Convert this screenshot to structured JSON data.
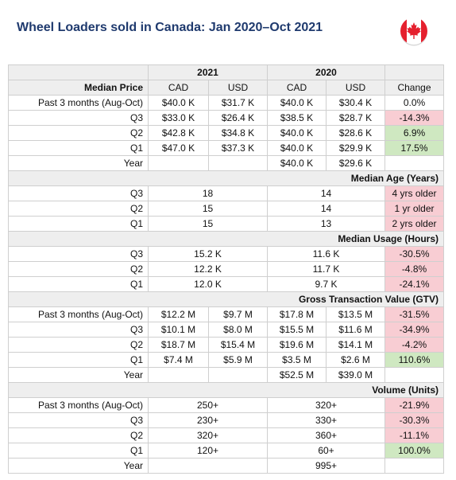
{
  "title": "Wheel Loaders sold in Canada: Jan 2020–Oct 2021",
  "colors": {
    "negative": "#f8cdd3",
    "positive": "#cfe8c1",
    "header": "#eeeeee",
    "title": "#1f3a6e"
  },
  "icon": "canada-flag-icon",
  "years": {
    "y2021": "2021",
    "y2020": "2020"
  },
  "price": {
    "section": "Median Price",
    "cad": "CAD",
    "usd": "USD",
    "change": "Change",
    "rows": [
      {
        "label": "Past 3 months (Aug-Oct)",
        "cad21": "$40.0 K",
        "usd21": "$31.7 K",
        "cad20": "$40.0 K",
        "usd20": "$30.4 K",
        "change": "0.0%"
      },
      {
        "label": "Q3",
        "cad21": "$33.0 K",
        "usd21": "$26.4 K",
        "cad20": "$38.5 K",
        "usd20": "$28.7 K",
        "change": "-14.3%"
      },
      {
        "label": "Q2",
        "cad21": "$42.8 K",
        "usd21": "$34.8 K",
        "cad20": "$40.0 K",
        "usd20": "$28.6 K",
        "change": "6.9%"
      },
      {
        "label": "Q1",
        "cad21": "$47.0 K",
        "usd21": "$37.3 K",
        "cad20": "$40.0 K",
        "usd20": "$29.9 K",
        "change": "17.5%"
      },
      {
        "label": "Year",
        "cad21": "",
        "usd21": "",
        "cad20": "$40.0 K",
        "usd20": "$29.6 K",
        "change": ""
      }
    ]
  },
  "age": {
    "section": "Median Age (Years)",
    "rows": [
      {
        "label": "Q3",
        "v21": "18",
        "v20": "14",
        "change": "4 yrs older"
      },
      {
        "label": "Q2",
        "v21": "15",
        "v20": "14",
        "change": "1 yr older"
      },
      {
        "label": "Q1",
        "v21": "15",
        "v20": "13",
        "change": "2 yrs older"
      }
    ]
  },
  "usage": {
    "section": "Median Usage (Hours)",
    "rows": [
      {
        "label": "Q3",
        "v21": "15.2 K",
        "v20": "11.6 K",
        "change": "-30.5%"
      },
      {
        "label": "Q2",
        "v21": "12.2 K",
        "v20": "11.7 K",
        "change": "-4.8%"
      },
      {
        "label": "Q1",
        "v21": "12.0 K",
        "v20": "9.7 K",
        "change": "-24.1%"
      }
    ]
  },
  "gtv": {
    "section": "Gross Transaction Value (GTV)",
    "rows": [
      {
        "label": "Past 3 months (Aug-Oct)",
        "cad21": "$12.2 M",
        "usd21": "$9.7 M",
        "cad20": "$17.8 M",
        "usd20": "$13.5 M",
        "change": "-31.5%"
      },
      {
        "label": "Q3",
        "cad21": "$10.1 M",
        "usd21": "$8.0 M",
        "cad20": "$15.5 M",
        "usd20": "$11.6 M",
        "change": "-34.9%"
      },
      {
        "label": "Q2",
        "cad21": "$18.7 M",
        "usd21": "$15.4 M",
        "cad20": "$19.6 M",
        "usd20": "$14.1 M",
        "change": "-4.2%"
      },
      {
        "label": "Q1",
        "cad21": "$7.4 M",
        "usd21": "$5.9 M",
        "cad20": "$3.5 M",
        "usd20": "$2.6 M",
        "change": "110.6%"
      },
      {
        "label": "Year",
        "cad21": "",
        "usd21": "",
        "cad20": "$52.5 M",
        "usd20": "$39.0 M",
        "change": ""
      }
    ]
  },
  "volume": {
    "section": "Volume (Units)",
    "rows": [
      {
        "label": "Past 3 months (Aug-Oct)",
        "v21": "250+",
        "v20": "320+",
        "change": "-21.9%"
      },
      {
        "label": "Q3",
        "v21": "230+",
        "v20": "330+",
        "change": "-30.3%"
      },
      {
        "label": "Q2",
        "v21": "320+",
        "v20": "360+",
        "change": "-11.1%"
      },
      {
        "label": "Q1",
        "v21": "120+",
        "v20": "60+",
        "change": "100.0%"
      },
      {
        "label": "Year",
        "v21": "",
        "v20": "995+",
        "change": ""
      }
    ]
  }
}
